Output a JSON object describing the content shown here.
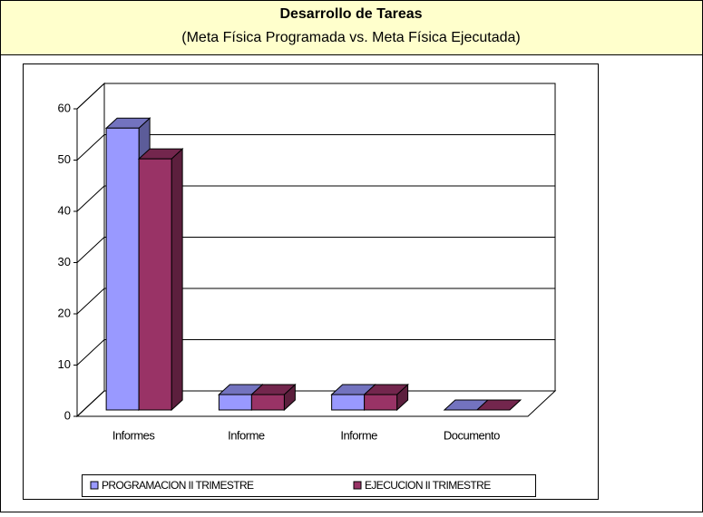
{
  "chart_data": {
    "type": "bar",
    "title": "Desarrollo de Tareas",
    "subtitle": "(Meta Física Programada vs. Meta Física Ejecutada)",
    "categories": [
      "Informes",
      "Informe",
      "Informe",
      "Documento"
    ],
    "series": [
      {
        "name": "PROGRAMACION II TRIMESTRE",
        "color": "#9999ff",
        "values": [
          55,
          3,
          3,
          0
        ]
      },
      {
        "name": "EJECUCION II TRIMESTRE",
        "color": "#993366",
        "values": [
          49,
          3,
          3,
          0
        ]
      }
    ],
    "ylim": [
      0,
      60
    ],
    "yticks": [
      0,
      10,
      20,
      30,
      40,
      50,
      60
    ],
    "grid": true,
    "legend": "bottom"
  }
}
